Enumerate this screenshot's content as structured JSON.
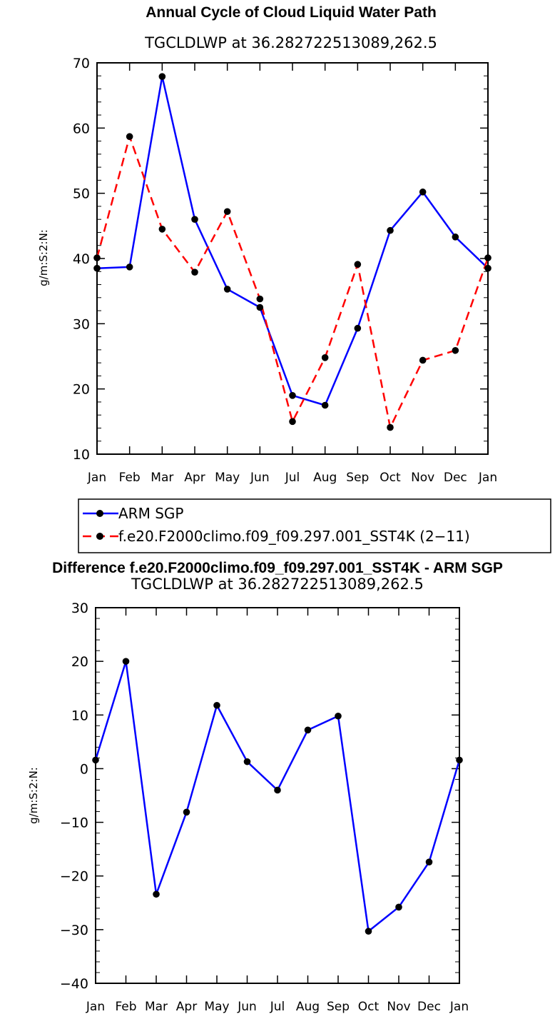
{
  "chart_data": [
    {
      "type": "line",
      "title": "Annual Cycle of Cloud Liquid Water Path",
      "subtitle": "TGCLDLWP  at  36.282722513089,262.5",
      "ylabel": "g/m:S:2:N:",
      "xlabel": "",
      "categories": [
        "Jan",
        "Feb",
        "Mar",
        "Apr",
        "May",
        "Jun",
        "Jul",
        "Aug",
        "Sep",
        "Oct",
        "Nov",
        "Dec",
        "Jan"
      ],
      "ylim": [
        10,
        70
      ],
      "yticks": [
        10,
        20,
        30,
        40,
        50,
        60,
        70
      ],
      "series": [
        {
          "name": "ARM SGP",
          "color": "#0000ff",
          "dash": "solid",
          "values": [
            38.5,
            38.7,
            67.9,
            46.0,
            35.3,
            32.5,
            19.0,
            17.5,
            29.3,
            44.3,
            50.2,
            43.3,
            38.5
          ]
        },
        {
          "name": "f.e20.F2000climo.f09_f09.297.001_SST4K (2−11)",
          "color": "#ff0000",
          "dash": "dashed",
          "values": [
            40.1,
            58.7,
            44.5,
            37.9,
            47.2,
            33.8,
            15.0,
            24.8,
            39.1,
            14.1,
            24.4,
            25.9,
            40.1
          ]
        }
      ],
      "legend": "below"
    },
    {
      "type": "line",
      "title": "Difference f.e20.F2000climo.f09_f09.297.001_SST4K - ARM SGP",
      "subtitle": "TGCLDLWP  at  36.282722513089,262.5",
      "ylabel": "g/m:S:2:N:",
      "xlabel": "",
      "categories": [
        "Jan",
        "Feb",
        "Mar",
        "Apr",
        "May",
        "Jun",
        "Jul",
        "Aug",
        "Sep",
        "Oct",
        "Nov",
        "Dec",
        "Jan"
      ],
      "ylim": [
        -40,
        30
      ],
      "yticks": [
        -40,
        -30,
        -20,
        -10,
        0,
        10,
        20,
        30
      ],
      "series": [
        {
          "color": "#0000ff",
          "dash": "solid",
          "values": [
            1.6,
            20.0,
            -23.4,
            -8.1,
            11.8,
            1.3,
            -4.0,
            7.2,
            9.8,
            -30.3,
            -25.8,
            -17.4,
            1.6
          ]
        }
      ]
    }
  ]
}
